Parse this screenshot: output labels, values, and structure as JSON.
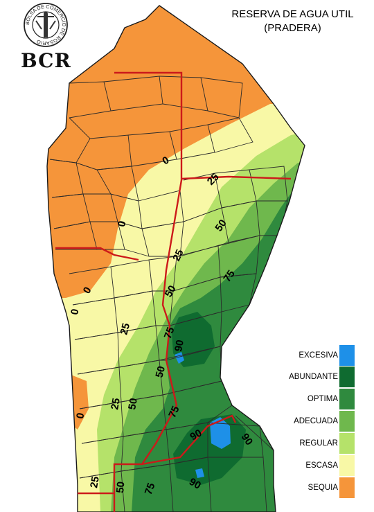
{
  "title": {
    "line1": "RESERVA DE AGUA UTIL",
    "line2": "(PRADERA)"
  },
  "logo": {
    "ring_text": "BOLSA DE COMERCIO DE ROSARIO",
    "abbrev": "BCR"
  },
  "legend": {
    "items": [
      {
        "label": "EXCESIVA",
        "color": "#1e90e8"
      },
      {
        "label": "ABUNDANTE",
        "color": "#0f6b30"
      },
      {
        "label": "OPTIMA",
        "color": "#2f8a3e"
      },
      {
        "label": "ADECUADA",
        "color": "#6fb84d"
      },
      {
        "label": "REGULAR",
        "color": "#b5e26a"
      },
      {
        "label": "ESCASA",
        "color": "#f8f8a6"
      },
      {
        "label": "SEQUIA",
        "color": "#f5953a"
      }
    ]
  },
  "contour_labels": [
    "0",
    "25",
    "50",
    "75",
    "90"
  ],
  "colors": {
    "province_border": "#cc1a1a",
    "department_border": "#2a2a2a"
  }
}
